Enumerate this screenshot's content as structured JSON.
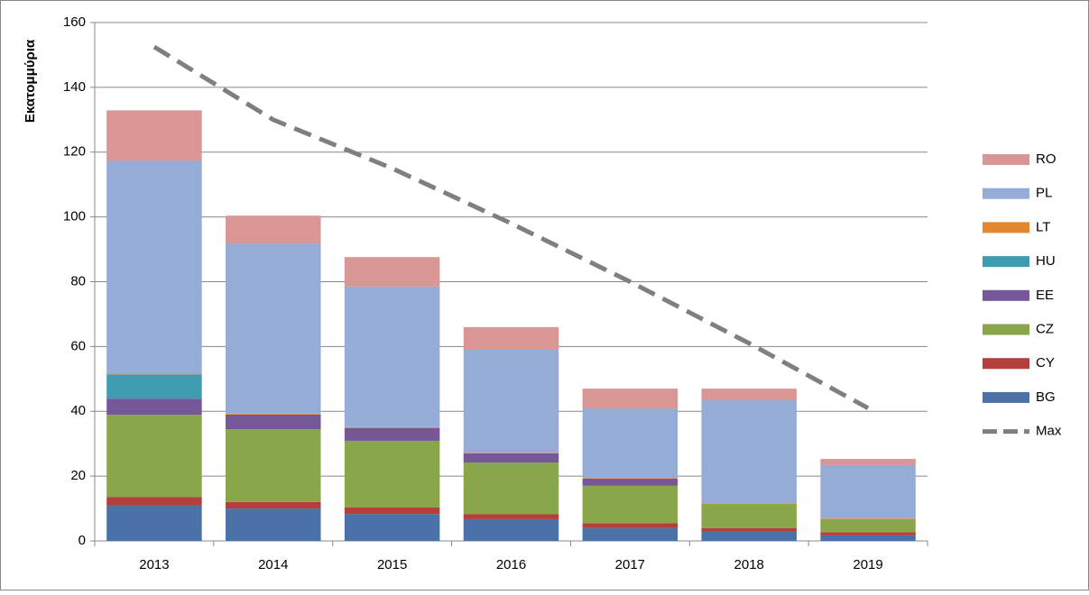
{
  "chart_data": {
    "type": "stacked-bar",
    "y_label": "Εκατομμύρια",
    "categories": [
      "2013",
      "2014",
      "2015",
      "2016",
      "2017",
      "2018",
      "2019"
    ],
    "series": [
      {
        "name": "BG",
        "color": "#4a72a8",
        "values": [
          11,
          10,
          8.3,
          6.7,
          4,
          2.8,
          1.7
        ]
      },
      {
        "name": "CY",
        "color": "#b3403d",
        "values": [
          2.5,
          2,
          2,
          1.6,
          1.5,
          1.1,
          1
        ]
      },
      {
        "name": "CZ",
        "color": "#8aa64b",
        "values": [
          25.4,
          22.5,
          20.6,
          15.9,
          11.5,
          7.5,
          4
        ]
      },
      {
        "name": "EE",
        "color": "#74589a",
        "values": [
          5,
          4.5,
          3.9,
          2.8,
          2.2,
          0,
          0
        ]
      },
      {
        "name": "HU",
        "color": "#3f9bb0",
        "values": [
          7.5,
          0,
          0,
          0,
          0,
          0,
          0
        ]
      },
      {
        "name": "LT",
        "color": "#e3862e",
        "values": [
          0.3,
          0.3,
          0.3,
          0.2,
          0.2,
          0.2,
          0.2
        ]
      },
      {
        "name": "PL",
        "color": "#95acd6",
        "values": [
          65.6,
          52.5,
          43.4,
          31.8,
          21.5,
          31.8,
          16.5
        ]
      },
      {
        "name": "RO",
        "color": "#d99694",
        "values": [
          15.6,
          8.6,
          9.1,
          7,
          6.1,
          3.6,
          1.9
        ]
      }
    ],
    "line_series": {
      "name": "Max",
      "color": "#7f7f7f",
      "values": [
        152.5,
        130,
        115,
        98,
        80,
        61,
        41
      ]
    },
    "ylim": [
      0,
      160
    ],
    "yticks": [
      0,
      20,
      40,
      60,
      80,
      100,
      120,
      140,
      160
    ],
    "grid": true
  }
}
